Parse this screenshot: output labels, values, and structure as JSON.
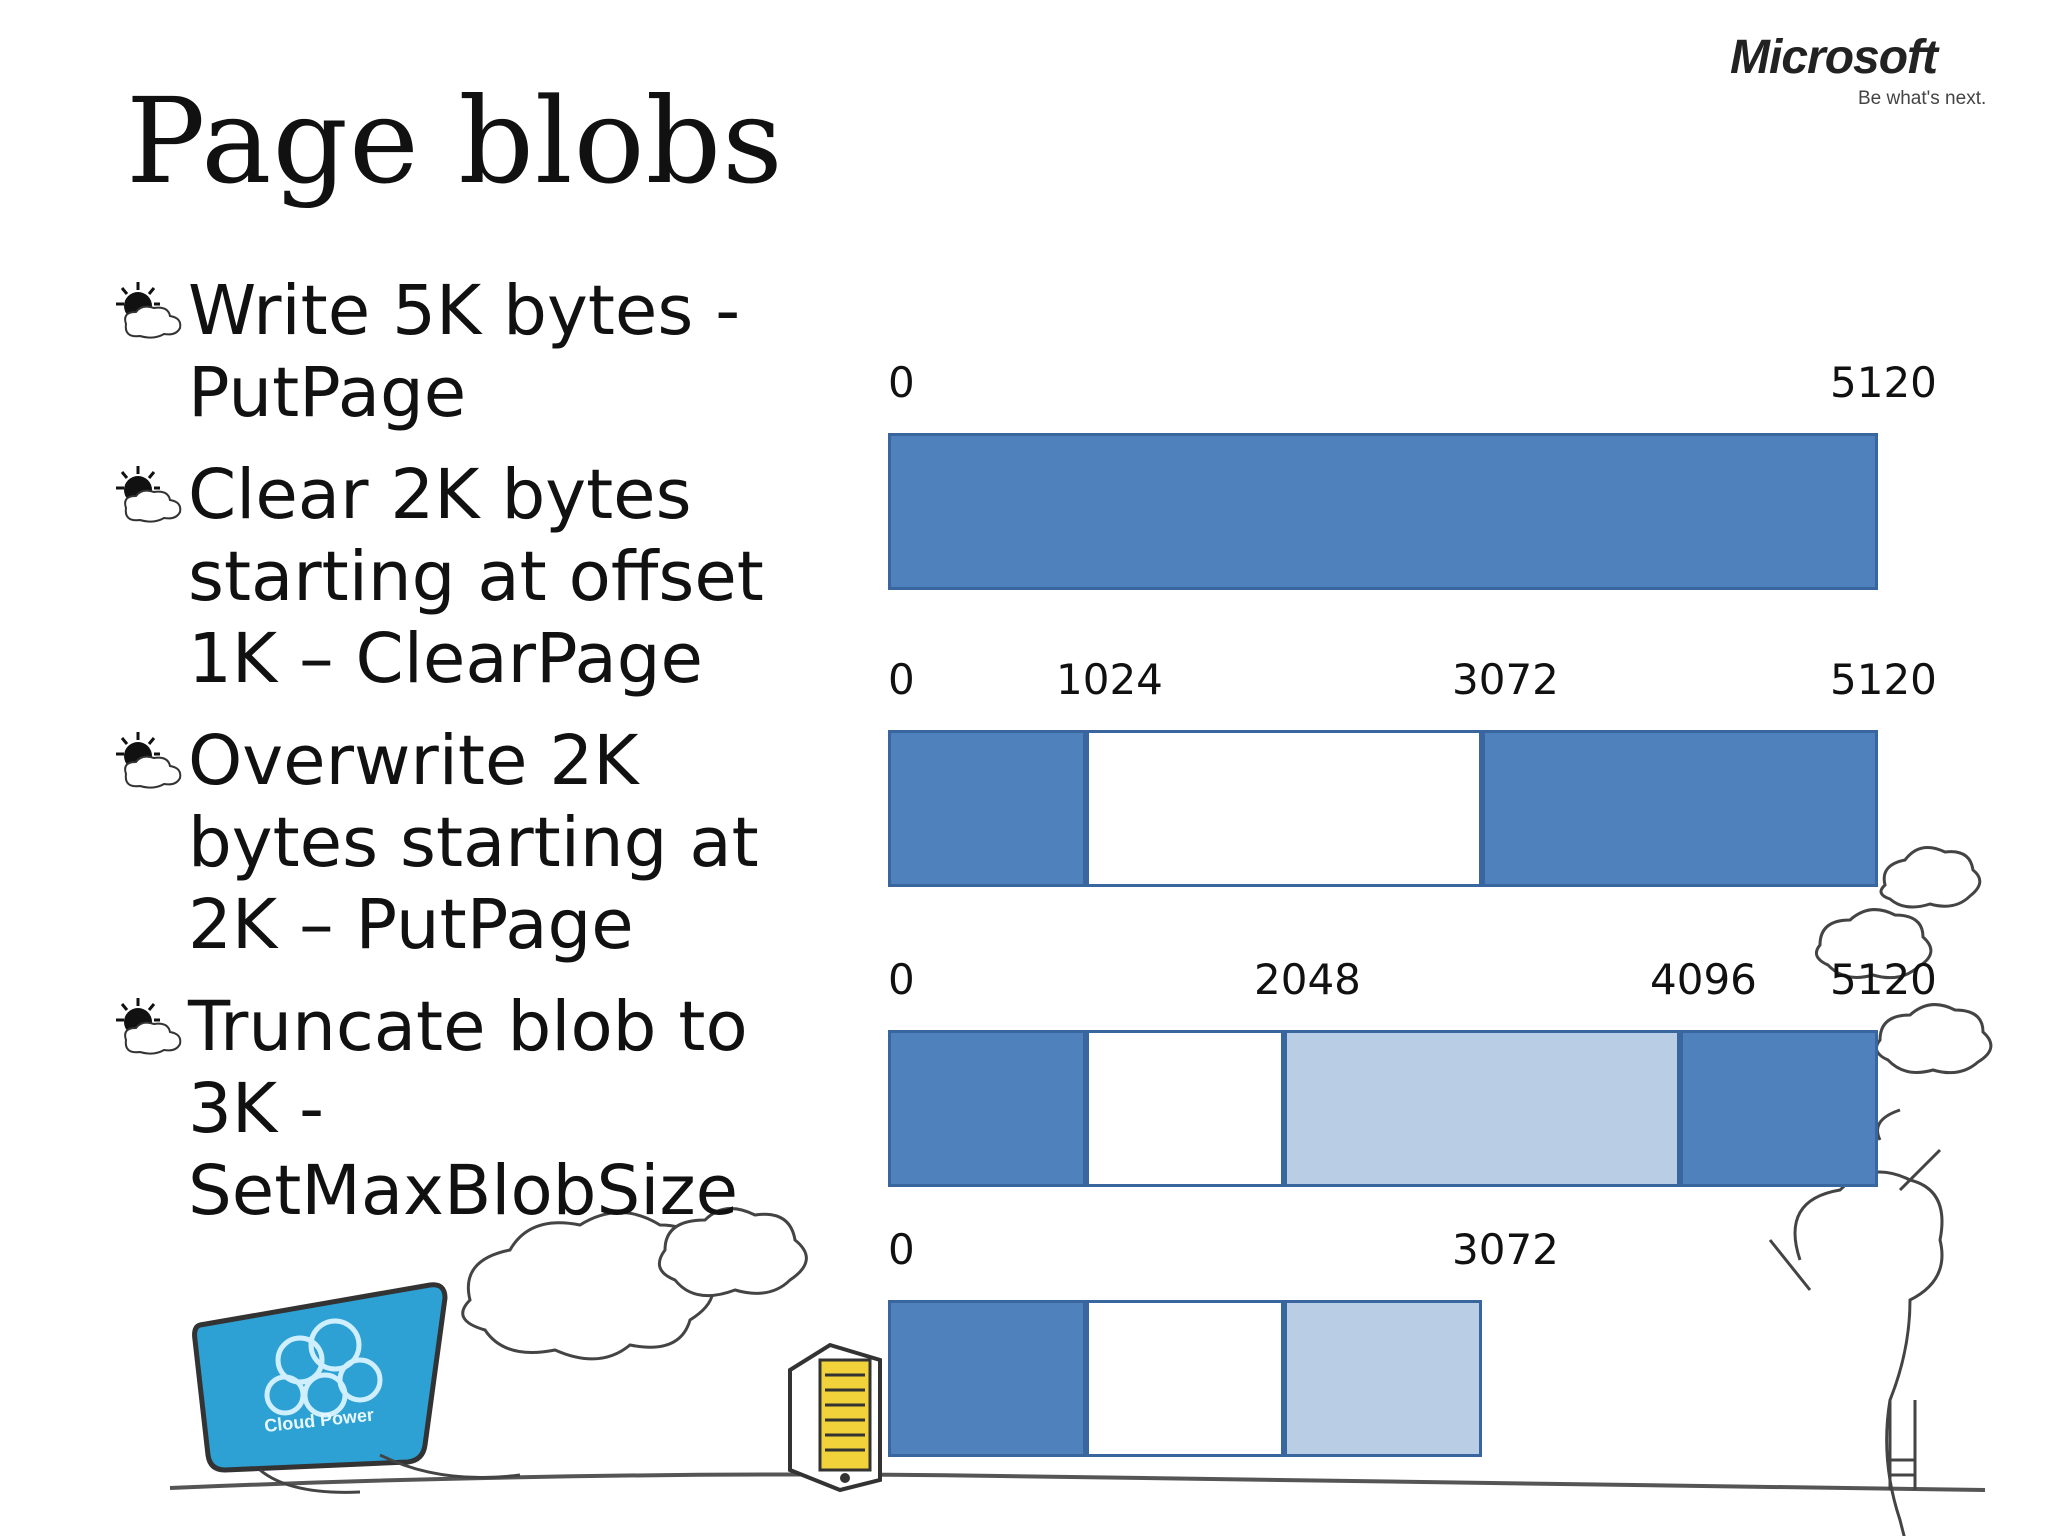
{
  "title": "Page blobs",
  "logo": {
    "brand": "Microsoft",
    "tagline": "Be what's next."
  },
  "bullets": [
    {
      "lines": [
        "Write 5K bytes -",
        "PutPage"
      ]
    },
    {
      "lines": [
        "Clear 2K bytes",
        "starting at offset",
        "1K – ClearPage"
      ]
    },
    {
      "lines": [
        "Overwrite 2K",
        "bytes starting at",
        "2K – PutPage"
      ]
    },
    {
      "lines": [
        "Truncate blob to",
        "3K -",
        "SetMaxBlobSize"
      ]
    }
  ],
  "monitor_caption": "Cloud Power",
  "colors": {
    "filled": "#4f81bd",
    "cleared": "#ffffff",
    "overwritten": "#b9cde5",
    "border": "#3a66a0"
  },
  "diagram": {
    "rows": [
      {
        "labels": [
          {
            "text": "0",
            "offset": 0
          },
          {
            "text": "5120",
            "offset": 5120
          }
        ],
        "segments": [
          {
            "start": 0,
            "end": 5120,
            "state": "filled"
          }
        ]
      },
      {
        "labels": [
          {
            "text": "0",
            "offset": 0
          },
          {
            "text": "1024",
            "offset": 1024
          },
          {
            "text": "3072",
            "offset": 3072
          },
          {
            "text": "5120",
            "offset": 5120
          }
        ],
        "segments": [
          {
            "start": 0,
            "end": 1024,
            "state": "filled"
          },
          {
            "start": 1024,
            "end": 3072,
            "state": "cleared"
          },
          {
            "start": 3072,
            "end": 5120,
            "state": "filled"
          }
        ]
      },
      {
        "labels": [
          {
            "text": "0",
            "offset": 0
          },
          {
            "text": "2048",
            "offset": 2048
          },
          {
            "text": "4096",
            "offset": 4096
          },
          {
            "text": "5120",
            "offset": 5120
          }
        ],
        "segments": [
          {
            "start": 0,
            "end": 1024,
            "state": "filled"
          },
          {
            "start": 1024,
            "end": 2048,
            "state": "cleared"
          },
          {
            "start": 2048,
            "end": 4096,
            "state": "overwritten"
          },
          {
            "start": 4096,
            "end": 5120,
            "state": "filled"
          }
        ]
      },
      {
        "labels": [
          {
            "text": "0",
            "offset": 0
          },
          {
            "text": "3072",
            "offset": 3072
          }
        ],
        "segments": [
          {
            "start": 0,
            "end": 1024,
            "state": "filled"
          },
          {
            "start": 1024,
            "end": 2048,
            "state": "cleared"
          },
          {
            "start": 2048,
            "end": 3072,
            "state": "overwritten"
          }
        ]
      }
    ]
  }
}
